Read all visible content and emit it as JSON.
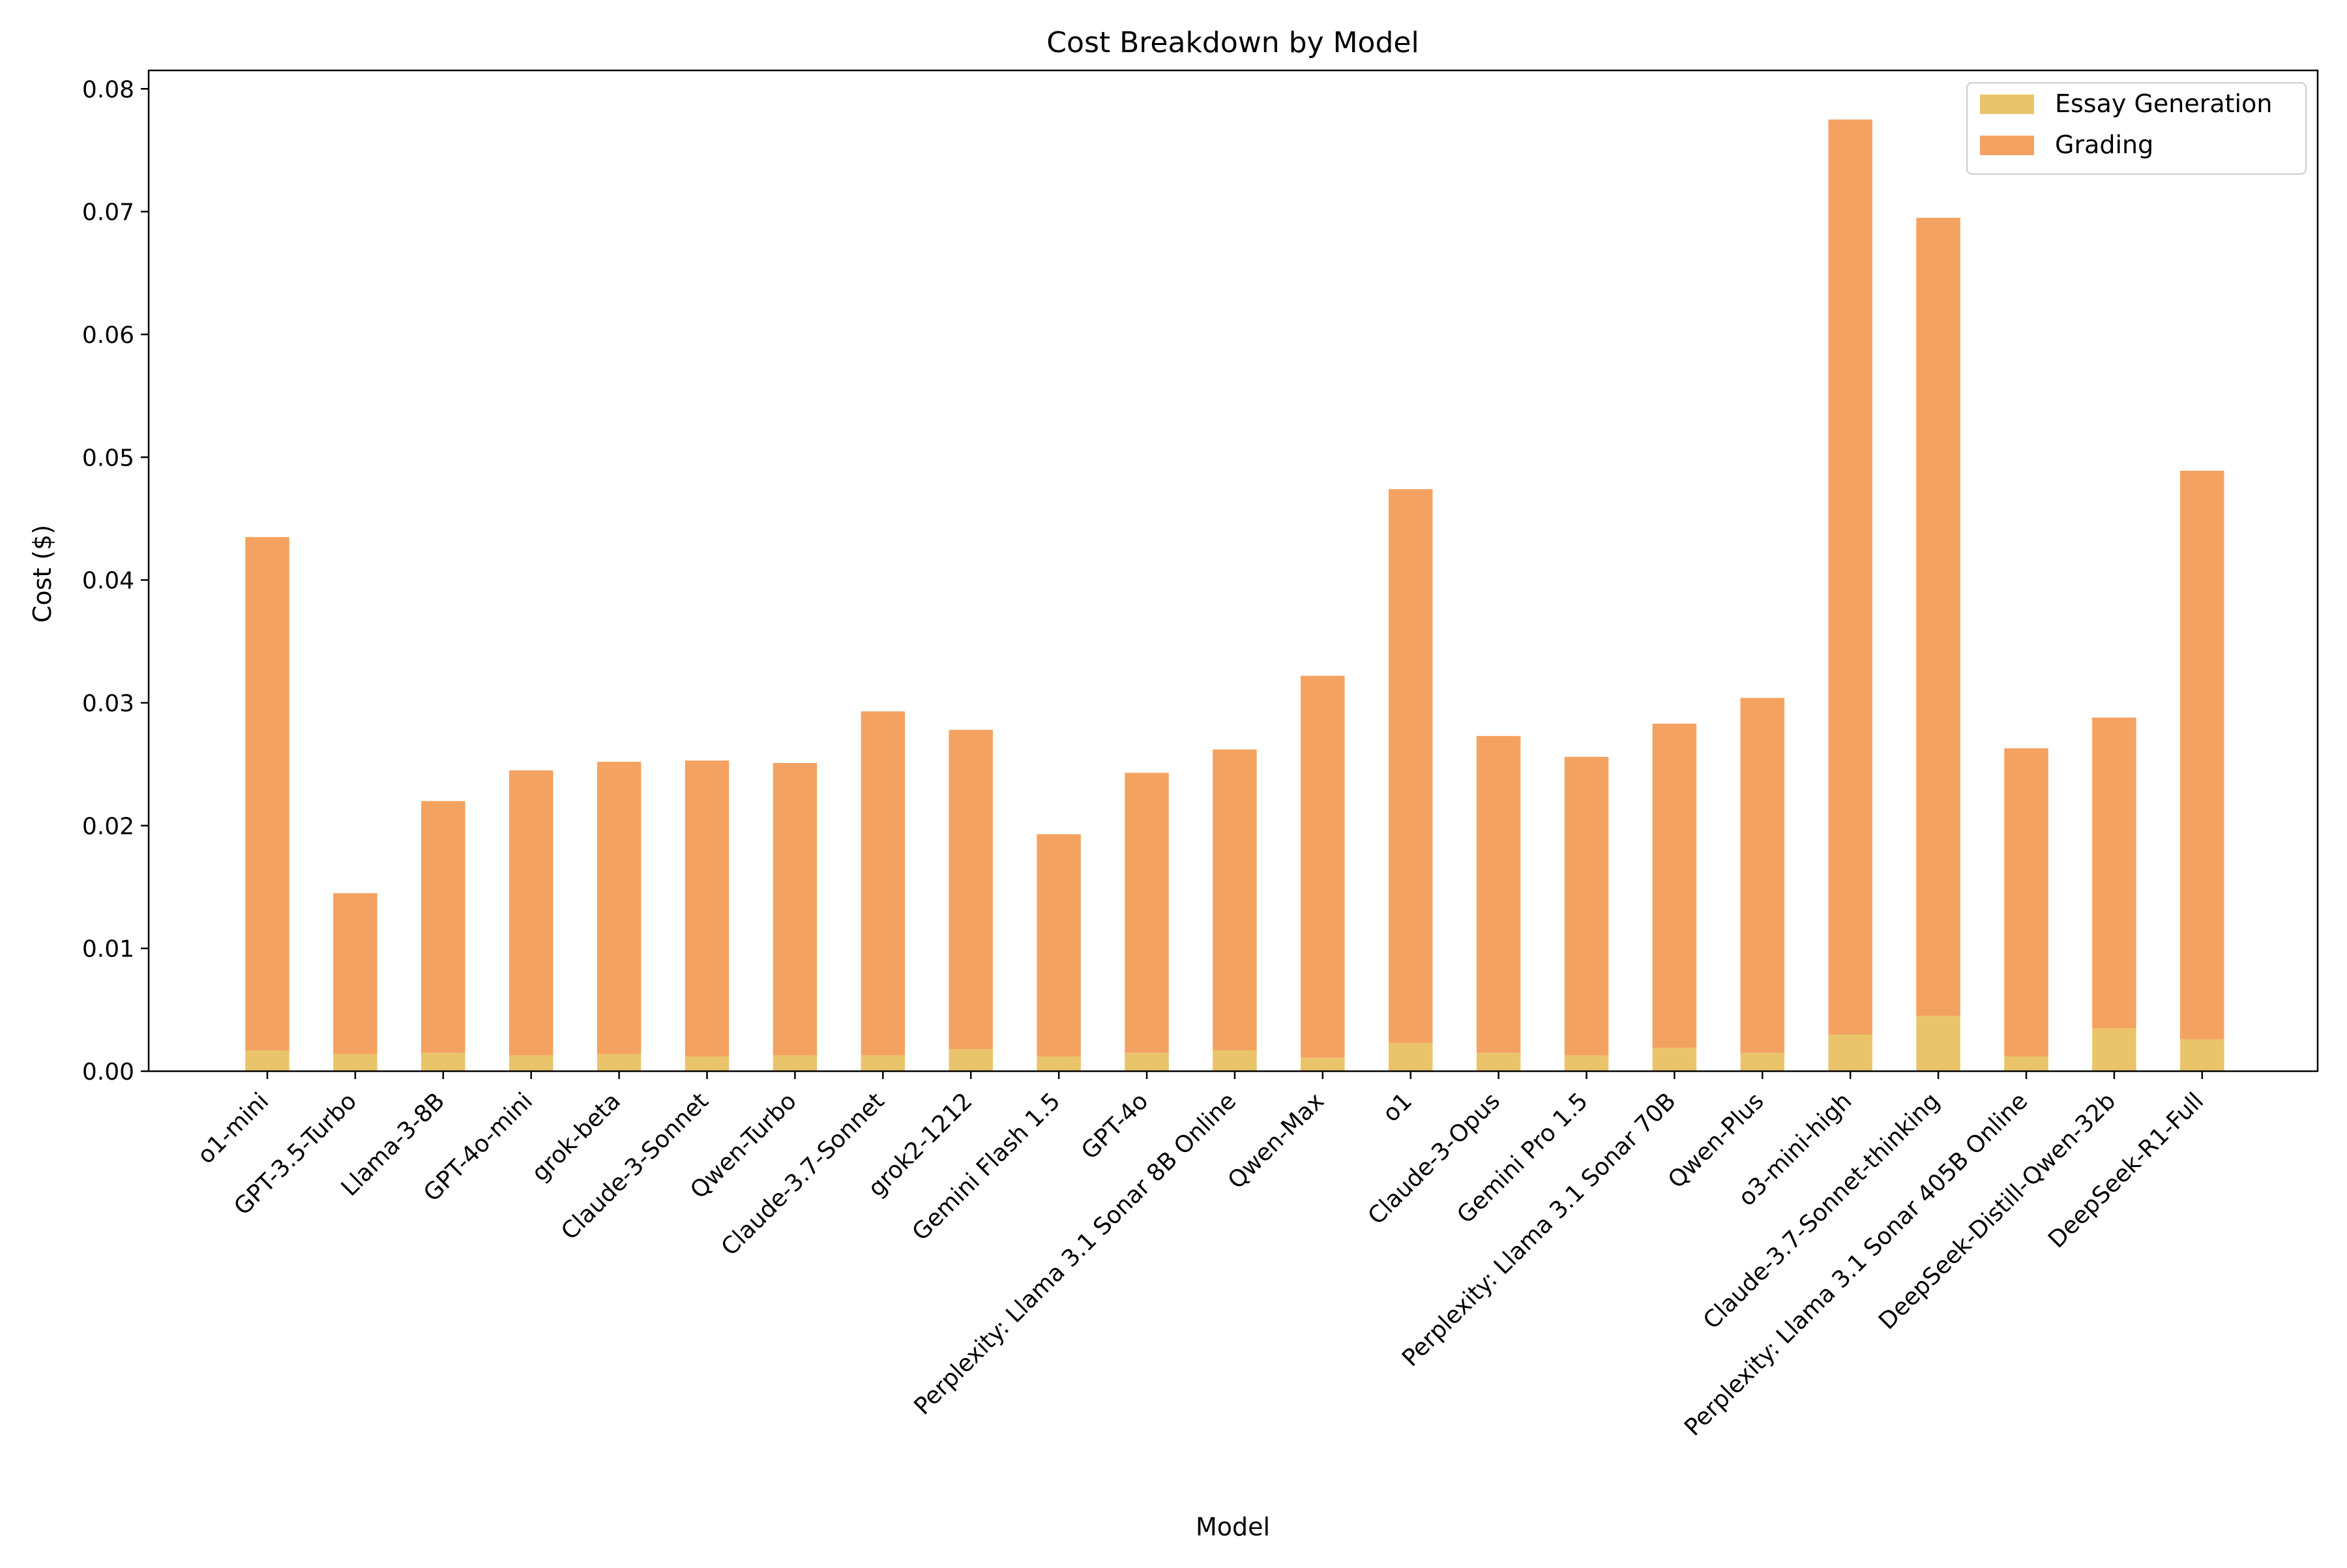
{
  "chart_data": {
    "type": "bar",
    "stacked": true,
    "title": "Cost Breakdown by Model",
    "xlabel": "Model",
    "ylabel": "Cost ($)",
    "ylim": [
      0,
      0.0815
    ],
    "yticks": [
      "0.00",
      "0.01",
      "0.02",
      "0.03",
      "0.04",
      "0.05",
      "0.06",
      "0.07",
      "0.08"
    ],
    "grid": false,
    "legend_position": "top-right",
    "categories": [
      "o1-mini",
      "GPT-3.5-Turbo",
      "Llama-3-8B",
      "GPT-4o-mini",
      "grok-beta",
      "Claude-3-Sonnet",
      "Qwen-Turbo",
      "Claude-3.7-Sonnet",
      "grok2-1212",
      "Gemini Flash 1.5",
      "GPT-4o",
      "Perplexity: Llama 3.1 Sonar 8B Online",
      "Qwen-Max",
      "o1",
      "Claude-3-Opus",
      "Gemini Pro 1.5",
      "Perplexity: Llama 3.1 Sonar 70B",
      "Qwen-Plus",
      "o3-mini-high",
      "Claude-3.7-Sonnet-thinking",
      "Perplexity: Llama 3.1 Sonar 405B Online",
      "DeepSeek-Distill-Qwen-32b",
      "DeepSeek-R1-Full"
    ],
    "series": [
      {
        "name": "Essay Generation",
        "color": "#e9c46a",
        "values": [
          0.0017,
          0.0014,
          0.0015,
          0.0013,
          0.0014,
          0.0012,
          0.0013,
          0.0013,
          0.0018,
          0.0012,
          0.0015,
          0.0017,
          0.0011,
          0.0023,
          0.0015,
          0.0013,
          0.0019,
          0.0015,
          0.003,
          0.0045,
          0.0012,
          0.0035,
          0.0026
        ]
      },
      {
        "name": "Grading",
        "color": "#f4a261",
        "values": [
          0.0418,
          0.0131,
          0.0205,
          0.0232,
          0.0238,
          0.0241,
          0.0238,
          0.028,
          0.026,
          0.0181,
          0.0228,
          0.0245,
          0.0311,
          0.0451,
          0.0258,
          0.0243,
          0.0264,
          0.0289,
          0.0745,
          0.065,
          0.0251,
          0.0253,
          0.0463
        ]
      }
    ]
  }
}
